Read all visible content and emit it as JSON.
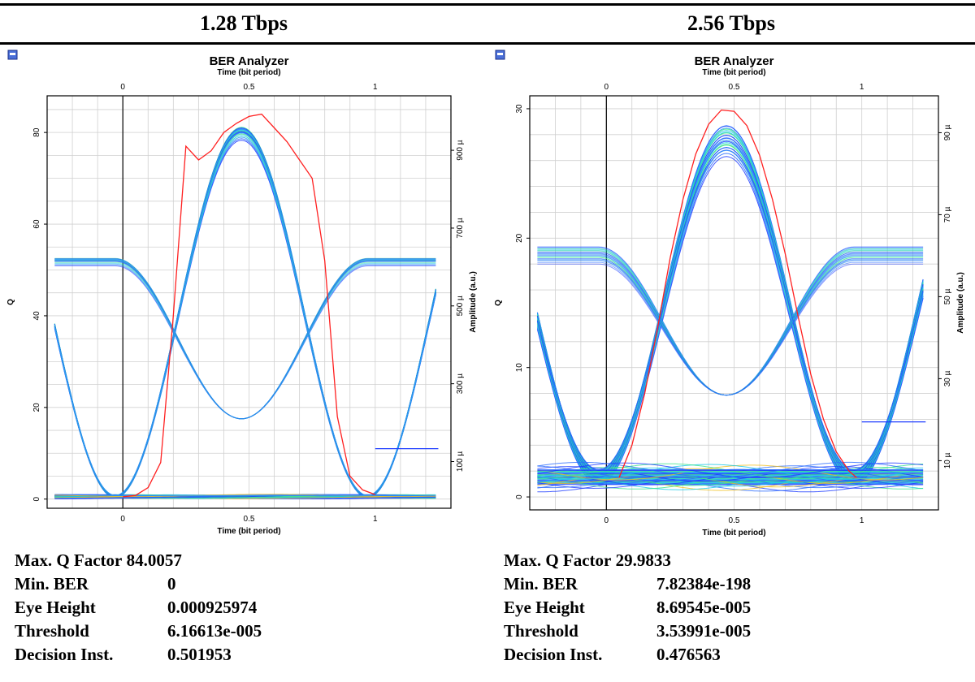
{
  "headers": {
    "left": "1.28 Tbps",
    "right": "2.56 Tbps"
  },
  "colors": {
    "eye_blue": "#1e3cff",
    "eye_cyan": "#19c8e6",
    "eye_green": "#3ce68c",
    "q_curve": "#ff2020",
    "grid": "#d0d0d0"
  },
  "icon": "ber-analyzer-app-icon",
  "chart_data": [
    {
      "type": "line",
      "title": "BER Analyzer",
      "xlabel": "Time (bit period)",
      "ylabel": "Q",
      "y2label": "Amplitude (a.u.)",
      "xlim": [
        -0.3,
        1.3
      ],
      "ylim": [
        -2,
        88
      ],
      "y2lim": [
        -2e-05,
        0.00104
      ],
      "x_ticks": [
        "0",
        "0.5",
        "1"
      ],
      "y_ticks": [
        "0",
        "20",
        "40",
        "60",
        "80"
      ],
      "y2_ticks": [
        "100 µ",
        "300 µ",
        "500 µ",
        "700 µ",
        "900 µ"
      ],
      "grid": true,
      "series": [
        {
          "kind": "q-factor",
          "x": [
            0.0,
            0.05,
            0.1,
            0.15,
            0.2,
            0.25,
            0.3,
            0.35,
            0.4,
            0.45,
            0.5,
            0.55,
            0.6,
            0.65,
            0.7,
            0.75,
            0.8,
            0.85,
            0.9,
            0.95,
            1.0
          ],
          "y": [
            0.5,
            0.8,
            2.5,
            8,
            40,
            77,
            74,
            76,
            80,
            82,
            83.5,
            84,
            81,
            78,
            74,
            70,
            52,
            18,
            5,
            2,
            1
          ]
        },
        {
          "kind": "eye-diagram",
          "eye_top_amp": 0.00096,
          "eye_top_spread": 2.5e-05,
          "crossover_amp": 0.00021,
          "floor_amp": 1e-05,
          "center_x": 0.47,
          "trace_count": 18
        },
        {
          "kind": "threshold-marker",
          "x": [
            1.0,
            1.25
          ],
          "y": [
            11,
            11
          ]
        }
      ],
      "stats": {
        "rows": [
          {
            "label": "Max. Q Factor",
            "value": "84.0057"
          },
          {
            "label": "Min. BER",
            "value": "0"
          },
          {
            "label": "Eye Height",
            "value": "0.000925974"
          },
          {
            "label": "Threshold",
            "value": "6.16613e-005"
          },
          {
            "label": "Decision Inst.",
            "value": "0.501953"
          }
        ]
      }
    },
    {
      "type": "line",
      "title": "BER Analyzer",
      "xlabel": "Time (bit period)",
      "ylabel": "Q",
      "y2label": "Amplitude (a.u.)",
      "xlim": [
        -0.3,
        1.3
      ],
      "ylim": [
        -1,
        31
      ],
      "y2lim": [
        -2e-06,
        9.9e-05
      ],
      "x_ticks": [
        "0",
        "0.5",
        "1"
      ],
      "y_ticks": [
        "0",
        "10",
        "20",
        "30"
      ],
      "y2_ticks": [
        "10 µ",
        "30 µ",
        "50 µ",
        "70 µ",
        "90 µ"
      ],
      "grid": true,
      "series": [
        {
          "kind": "q-factor",
          "x": [
            0.05,
            0.1,
            0.15,
            0.2,
            0.25,
            0.3,
            0.35,
            0.4,
            0.45,
            0.5,
            0.55,
            0.6,
            0.65,
            0.7,
            0.75,
            0.8,
            0.85,
            0.9,
            0.95,
            0.98
          ],
          "y": [
            1.5,
            4,
            8,
            13,
            18.5,
            23,
            26.5,
            28.8,
            29.9,
            29.8,
            28.7,
            26.4,
            23,
            18.8,
            14,
            9.5,
            6,
            3.5,
            2,
            1.5
          ]
        },
        {
          "kind": "eye-diagram",
          "eye_top_amp": 9.2e-05,
          "eye_top_spread": 7e-06,
          "crossover_amp": 2.6e-05,
          "floor_amp": 6e-06,
          "center_x": 0.47,
          "trace_count": 22
        },
        {
          "kind": "threshold-marker",
          "x": [
            1.0,
            1.25
          ],
          "y": [
            5.8,
            5.8
          ]
        }
      ],
      "stats": {
        "rows": [
          {
            "label": "Max. Q Factor",
            "value": "29.9833"
          },
          {
            "label": "Min. BER",
            "value": "7.82384e-198"
          },
          {
            "label": "Eye Height",
            "value": "8.69545e-005"
          },
          {
            "label": "Threshold",
            "value": "3.53991e-005"
          },
          {
            "label": "Decision Inst.",
            "value": "0.476563"
          }
        ]
      }
    }
  ]
}
